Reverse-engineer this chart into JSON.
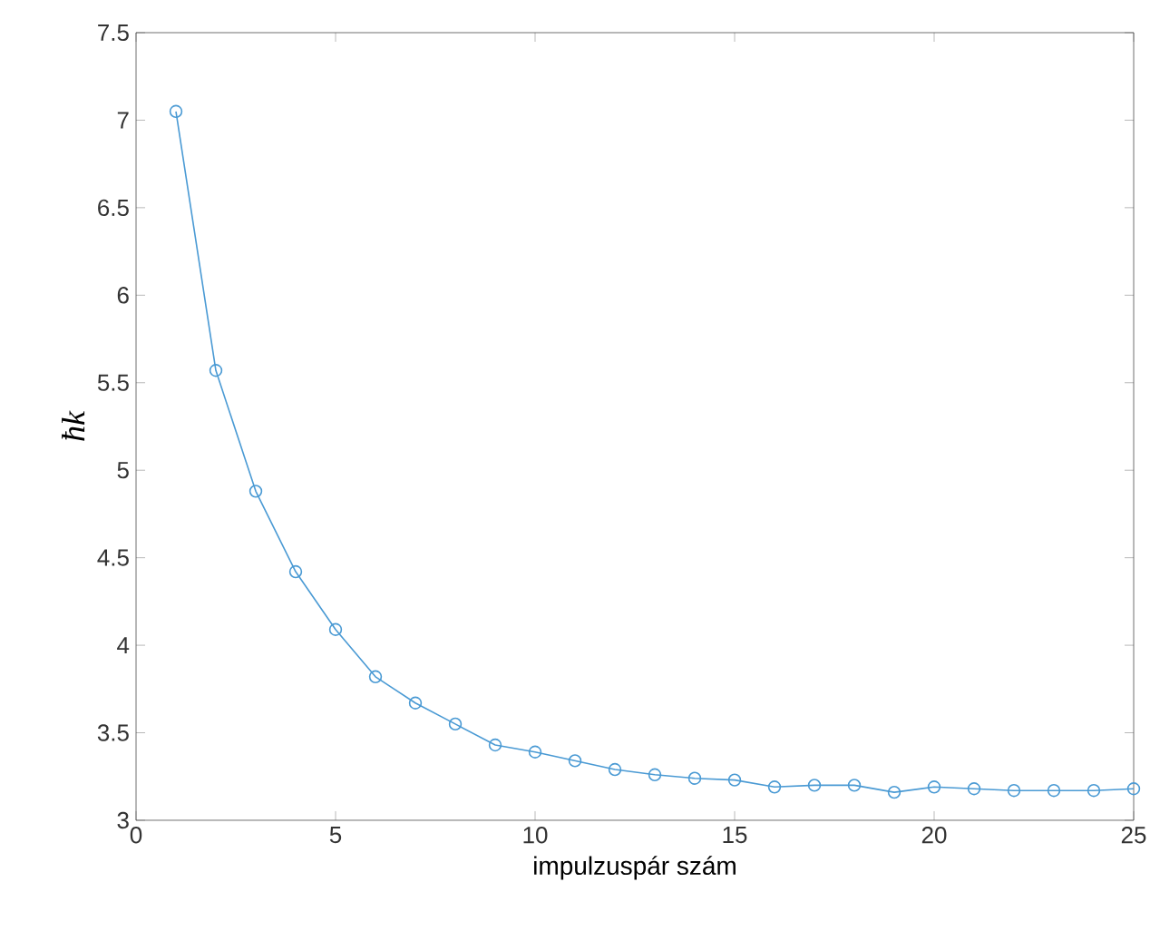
{
  "chart_data": {
    "type": "line",
    "xlabel": "impulzuspár szám",
    "ylabel": "ħk",
    "x": [
      1,
      2,
      3,
      4,
      5,
      6,
      7,
      8,
      9,
      10,
      11,
      12,
      13,
      14,
      15,
      16,
      17,
      18,
      19,
      20,
      21,
      22,
      23,
      24,
      25
    ],
    "series": [
      {
        "color": "#4a9ad4",
        "values": [
          7.05,
          5.57,
          4.88,
          4.42,
          4.09,
          3.82,
          3.67,
          3.55,
          3.43,
          3.39,
          3.34,
          3.29,
          3.26,
          3.24,
          3.23,
          3.19,
          3.2,
          3.2,
          3.16,
          3.19,
          3.18,
          3.17,
          3.17,
          3.17,
          3.18
        ]
      }
    ],
    "xlim": [
      0,
      25
    ],
    "ylim": [
      3,
      7.5
    ],
    "xticks": [
      0,
      5,
      10,
      15,
      20,
      25
    ],
    "yticks": [
      3,
      3.5,
      4,
      4.5,
      5,
      5.5,
      6,
      6.5,
      7,
      7.5
    ],
    "marker": "circle",
    "line_style": "solid",
    "grid": false
  }
}
